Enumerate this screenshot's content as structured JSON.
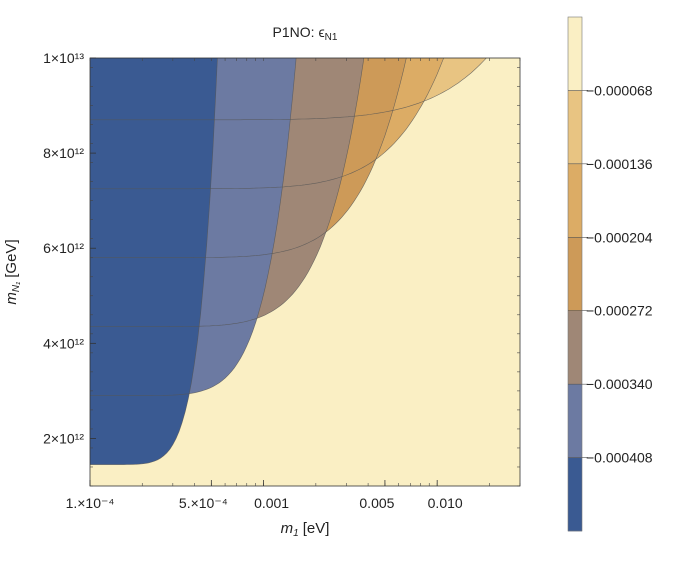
{
  "chart_data": {
    "type": "contour",
    "title": "P1NO: ϵ",
    "title_subscript": "N1",
    "xlabel": "m",
    "xlabel_subscript": "1",
    "xlabel_unit": "[eV]",
    "ylabel": "m",
    "ylabel_subscript": "N₁",
    "ylabel_unit": "[GeV]",
    "x_scale": "log",
    "xlim": [
      0.0001,
      0.03
    ],
    "ylim": [
      1000000000000.0,
      10000000000000.0
    ],
    "x_ticks": [
      {
        "value": 0.0001,
        "label": "1.×10⁻⁴"
      },
      {
        "value": 0.0005,
        "label": "5.×10⁻⁴"
      },
      {
        "value": 0.001,
        "label": "0.001"
      },
      {
        "value": 0.005,
        "label": "0.005"
      },
      {
        "value": 0.01,
        "label": "0.010"
      }
    ],
    "y_ticks": [
      {
        "value": 2000000000000.0,
        "label": "2×10¹²"
      },
      {
        "value": 4000000000000.0,
        "label": "4×10¹²"
      },
      {
        "value": 6000000000000.0,
        "label": "6×10¹²"
      },
      {
        "value": 8000000000000.0,
        "label": "8×10¹²"
      },
      {
        "value": 10000000000000.0,
        "label": "1×10¹³"
      }
    ],
    "levels": [
      -0.000408,
      -0.00034,
      -0.000272,
      -0.000204,
      -0.000136,
      -6.8e-05
    ],
    "level_labels": [
      "−0.000408",
      "−0.000340",
      "−0.000272",
      "−0.000204",
      "−0.000136",
      "−0.000068"
    ],
    "contour_plateau_y": [
      1450000000000.0,
      2900000000000.0,
      4350000000000.0,
      5800000000000.0,
      7250000000000.0,
      8700000000000.0
    ],
    "contour_x_at_ymax": [
      0.000542,
      0.00154,
      0.00378,
      0.00664,
      0.0109,
      0.0192
    ],
    "band_colors": [
      "#3a5a92",
      "#6c7aa2",
      "#9f8776",
      "#cd9a58",
      "#dcac65",
      "#e8c482",
      "#faefc4"
    ],
    "grid": false,
    "legend": "colorbar-right"
  }
}
